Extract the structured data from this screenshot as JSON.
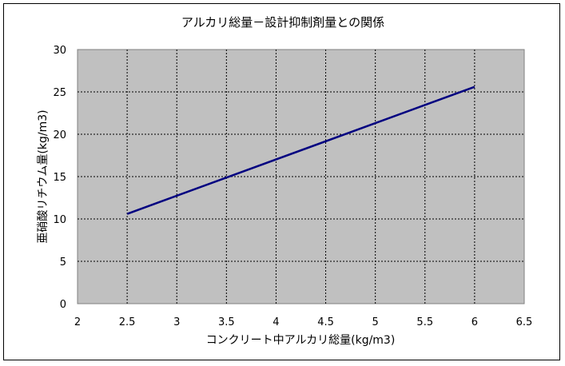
{
  "chart_data": {
    "type": "line",
    "title": "アルカリ総量－設計抑制剤量との関係",
    "xlabel": "コンクリート中アルカリ総量(kg/m3)",
    "ylabel": "亜硝酸リチウム量(kg/m3)",
    "xlim": [
      2,
      6.5
    ],
    "ylim": [
      0,
      30
    ],
    "xticks": [
      "2",
      "2.5",
      "3",
      "3.5",
      "4",
      "4.5",
      "5",
      "5.5",
      "6",
      "6.5"
    ],
    "yticks": [
      "0",
      "5",
      "10",
      "15",
      "20",
      "25",
      "30"
    ],
    "grid": true,
    "plot_background": "#c0c0c0",
    "series": [
      {
        "color": "#000080",
        "x": [
          2.5,
          6.0
        ],
        "y": [
          10.6,
          25.6
        ]
      }
    ]
  }
}
